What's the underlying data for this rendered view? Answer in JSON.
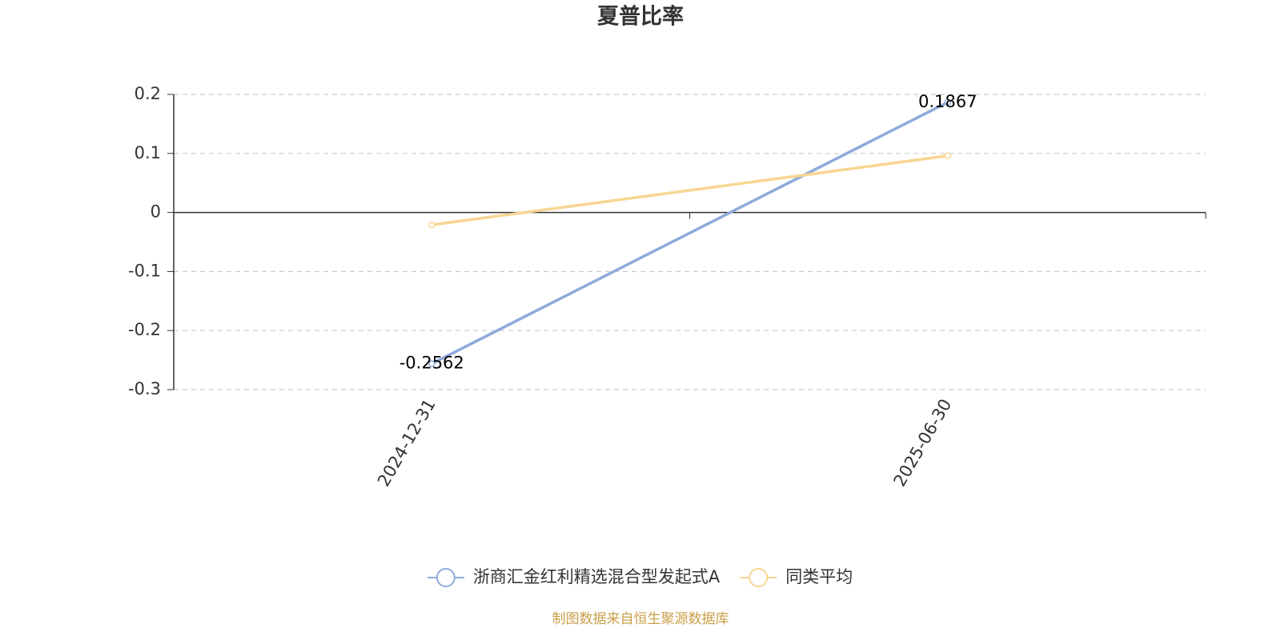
{
  "chart_data": {
    "type": "line",
    "title": "夏普比率",
    "categories": [
      "2024-12-31",
      "2025-06-30"
    ],
    "series": [
      {
        "name": "浙商汇金红利精选混合型发起式A",
        "color": "#8eaadb",
        "values": [
          -0.2562,
          0.1867
        ],
        "show_labels": true
      },
      {
        "name": "同类平均",
        "color": "#f9d592",
        "values": [
          -0.021,
          0.096
        ],
        "show_labels": false
      }
    ],
    "ylim": [
      -0.3,
      0.2
    ],
    "yticks": [
      0.2,
      0.1,
      0,
      -0.1,
      -0.2,
      -0.3
    ],
    "grid": true,
    "legend": "bottom",
    "source": "制图数据来自恒生聚源数据库"
  }
}
